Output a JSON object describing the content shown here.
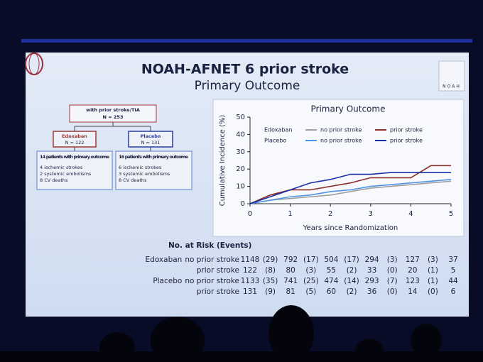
{
  "slide": {
    "title": "NOAH-AFNET 6 prior stroke",
    "subtitle": "Primary Outcome",
    "logo": "NOAH"
  },
  "flow": {
    "top": [
      "with prior stroke/TIA",
      "N = 253"
    ],
    "arms": [
      {
        "name": "Edoxaban",
        "n": "N = 122",
        "color": "#9b3a35",
        "outcome": [
          "14 patients with primary outcome",
          "4 ischemic strokes",
          "2 systemic embolisms",
          "8 CV deaths"
        ]
      },
      {
        "name": "Placebo",
        "n": "N = 131",
        "color": "#2a3f9e",
        "outcome": [
          "16 patients with primary outcome",
          "6 ischemic strokes",
          "3 systemic embolisms",
          "8 CV deaths"
        ]
      }
    ]
  },
  "chart_data": {
    "type": "line",
    "title": "Primary Outcome",
    "x_label": "Years since Randomization",
    "y_label": "Cumulative Incidence (%)",
    "x": [
      0,
      0.5,
      1,
      1.5,
      2,
      2.5,
      3,
      3.5,
      4,
      4.5,
      5
    ],
    "legend_rows": [
      "Edoxaban",
      "Placebo"
    ],
    "series": [
      {
        "name": "no prior stroke",
        "color": "#a0a0a0",
        "values": [
          0,
          2,
          3,
          4,
          5,
          7,
          9,
          10,
          11,
          12,
          13
        ]
      },
      {
        "name": "prior stroke",
        "color": "#8b2f2a",
        "values": [
          0,
          5,
          8,
          8,
          10,
          12,
          15,
          15,
          15,
          22,
          22
        ]
      },
      {
        "name": "no prior stroke",
        "color": "#4f93e6",
        "values": [
          0,
          2,
          4,
          5,
          7,
          8,
          10,
          11,
          12,
          13,
          14
        ]
      },
      {
        "name": "prior stroke",
        "color": "#1a2ea8",
        "values": [
          0,
          4,
          8,
          12,
          14,
          17,
          17,
          18,
          18,
          18,
          18
        ]
      }
    ],
    "xlim": [
      0,
      5
    ],
    "xticks": [
      0,
      1,
      2,
      3,
      4,
      5
    ],
    "ylim": [
      0,
      50
    ],
    "yticks": [
      0,
      10,
      20,
      30,
      40,
      50
    ]
  },
  "risk_table": {
    "title": "No. at Risk (Events)",
    "rows": [
      {
        "group": "Edoxaban",
        "label": "no prior stroke",
        "cells": [
          "1148",
          "(29)",
          "792",
          "(17)",
          "504",
          "(17)",
          "294",
          "(3)",
          "127",
          "(3)",
          "37"
        ]
      },
      {
        "group": null,
        "label": "prior stroke",
        "cells": [
          "122",
          "(8)",
          "80",
          "(3)",
          "55",
          "(2)",
          "33",
          "(0)",
          "20",
          "(1)",
          "5"
        ]
      },
      {
        "group": "Placebo",
        "label": "no prior stroke",
        "cells": [
          "1133",
          "(35)",
          "741",
          "(25)",
          "474",
          "(14)",
          "293",
          "(7)",
          "123",
          "(1)",
          "44"
        ]
      },
      {
        "group": null,
        "label": "prior stroke",
        "cells": [
          "131",
          "(9)",
          "81",
          "(5)",
          "60",
          "(2)",
          "36",
          "(0)",
          "14",
          "(0)",
          "6"
        ]
      }
    ]
  }
}
